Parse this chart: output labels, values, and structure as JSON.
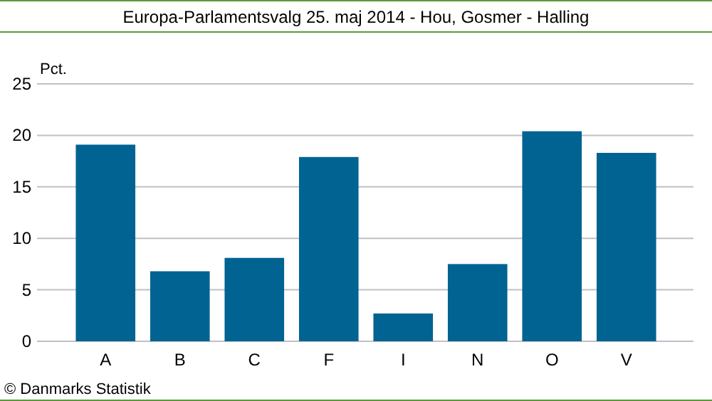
{
  "chart_data": {
    "type": "bar",
    "title": "Europa-Parlamentsvalg 25. maj 2014 - Hou, Gosmer - Halling",
    "ylabel": "Pct.",
    "annotations": [
      "© Danmarks Statistik"
    ],
    "categories": [
      "A",
      "B",
      "C",
      "F",
      "I",
      "N",
      "O",
      "V"
    ],
    "values": [
      19.1,
      6.8,
      8.1,
      17.9,
      2.7,
      7.5,
      20.4,
      18.3
    ],
    "color": "#006392",
    "ylim": [
      0,
      25
    ],
    "yticks": [
      0,
      5,
      10,
      15,
      20,
      25
    ],
    "grid": "y"
  }
}
